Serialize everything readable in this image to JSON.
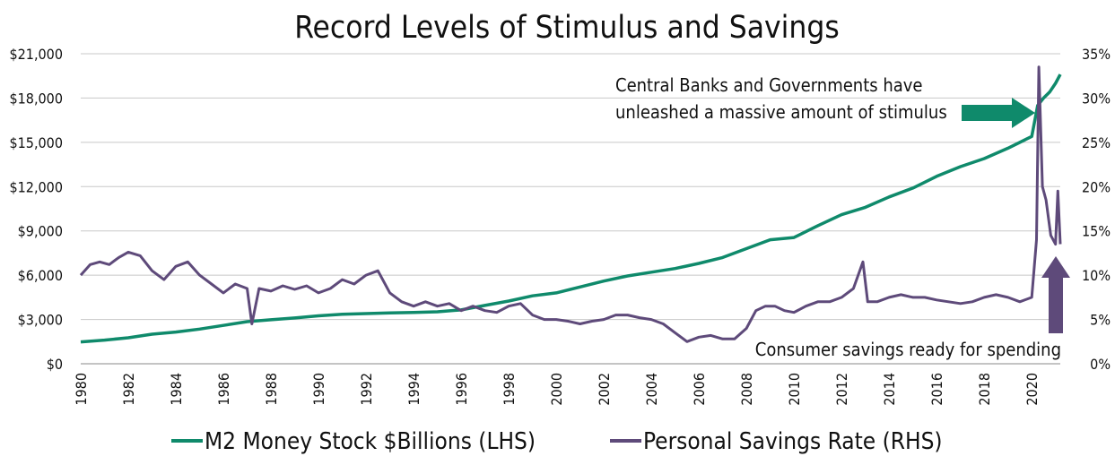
{
  "chart_data": {
    "type": "line",
    "title": "Record Levels of Stimulus and Savings",
    "x_tick_labels": [
      "1980",
      "1982",
      "1984",
      "1986",
      "1988",
      "1990",
      "1992",
      "1994",
      "1996",
      "1998",
      "2000",
      "2002",
      "2004",
      "2006",
      "2008",
      "2010",
      "2012",
      "2014",
      "2016",
      "2018",
      "2020"
    ],
    "xlim": [
      1980,
      2021.2
    ],
    "left_axis": {
      "ylim": [
        0,
        21000
      ],
      "tick_labels": [
        "$0",
        "$3,000",
        "$6,000",
        "$9,000",
        "$12,000",
        "$15,000",
        "$18,000",
        "$21,000"
      ]
    },
    "right_axis": {
      "ylim": [
        0,
        35
      ],
      "tick_labels": [
        "0%",
        "5%",
        "10%",
        "15%",
        "20%",
        "25%",
        "30%",
        "35%"
      ]
    },
    "grid": "horizontal",
    "series": [
      {
        "name": "M2 Money Stock $Billions (LHS)",
        "axis": "left",
        "color": "#0f8a6b",
        "x": [
          1980,
          1981,
          1982,
          1983,
          1984,
          1985,
          1986,
          1987,
          1988,
          1989,
          1990,
          1991,
          1992,
          1993,
          1994,
          1995,
          1996,
          1997,
          1998,
          1999,
          2000,
          2001,
          2002,
          2003,
          2004,
          2005,
          2006,
          2007,
          2008,
          2009,
          2010,
          2011,
          2012,
          2013,
          2014,
          2015,
          2016,
          2017,
          2018,
          2019,
          2020.0,
          2020.25,
          2020.5,
          2020.75,
          2021.0,
          2021.2
        ],
        "values": [
          1480,
          1600,
          1760,
          2000,
          2150,
          2350,
          2600,
          2850,
          2980,
          3100,
          3250,
          3350,
          3400,
          3450,
          3480,
          3520,
          3650,
          3950,
          4250,
          4600,
          4800,
          5200,
          5600,
          5950,
          6200,
          6450,
          6800,
          7200,
          7800,
          8400,
          8550,
          9350,
          10100,
          10600,
          11300,
          11900,
          12700,
          13350,
          13900,
          14600,
          15400,
          17500,
          18000,
          18400,
          19000,
          19600
        ]
      },
      {
        "name": "Personal Savings Rate (RHS)",
        "axis": "right",
        "color": "#5e4a7a",
        "x": [
          1980,
          1980.4,
          1980.8,
          1981.2,
          1981.6,
          1982.0,
          1982.5,
          1983.0,
          1983.5,
          1984.0,
          1984.5,
          1985.0,
          1985.5,
          1986.0,
          1986.5,
          1987.0,
          1987.2,
          1987.5,
          1988.0,
          1988.5,
          1989.0,
          1989.5,
          1990.0,
          1990.5,
          1991.0,
          1991.5,
          1992.0,
          1992.5,
          1993.0,
          1993.5,
          1994.0,
          1994.5,
          1995.0,
          1995.5,
          1996.0,
          1996.5,
          1997.0,
          1997.5,
          1998.0,
          1998.5,
          1999.0,
          1999.5,
          2000.0,
          2000.5,
          2001.0,
          2001.5,
          2002.0,
          2002.5,
          2003.0,
          2003.5,
          2004.0,
          2004.5,
          2005.0,
          2005.5,
          2006.0,
          2006.5,
          2007.0,
          2007.5,
          2008.0,
          2008.4,
          2008.8,
          2009.2,
          2009.6,
          2010.0,
          2010.5,
          2011.0,
          2011.5,
          2012.0,
          2012.5,
          2012.9,
          2013.1,
          2013.5,
          2014.0,
          2014.5,
          2015.0,
          2015.5,
          2016.0,
          2016.5,
          2017.0,
          2017.5,
          2018.0,
          2018.5,
          2019.0,
          2019.5,
          2020.0,
          2020.2,
          2020.3,
          2020.45,
          2020.6,
          2020.8,
          2021.0,
          2021.1,
          2021.2
        ],
        "values": [
          10.0,
          11.2,
          11.5,
          11.2,
          12.0,
          12.6,
          12.2,
          10.5,
          9.5,
          11.0,
          11.5,
          10.0,
          9.0,
          8.0,
          9.0,
          8.5,
          4.5,
          8.5,
          8.2,
          8.8,
          8.4,
          8.8,
          8.0,
          8.5,
          9.5,
          9.0,
          10.0,
          10.5,
          8.0,
          7.0,
          6.5,
          7.0,
          6.5,
          6.8,
          6.0,
          6.5,
          6.0,
          5.8,
          6.5,
          6.8,
          5.5,
          5.0,
          5.0,
          4.8,
          4.5,
          4.8,
          5.0,
          5.5,
          5.5,
          5.2,
          5.0,
          4.5,
          3.5,
          2.5,
          3.0,
          3.2,
          2.8,
          2.8,
          4.0,
          6.0,
          6.5,
          6.5,
          6.0,
          5.8,
          6.5,
          7.0,
          7.0,
          7.5,
          8.5,
          11.5,
          7.0,
          7.0,
          7.5,
          7.8,
          7.5,
          7.5,
          7.2,
          7.0,
          6.8,
          7.0,
          7.5,
          7.8,
          7.5,
          7.0,
          7.5,
          14.0,
          33.5,
          20.0,
          18.5,
          14.5,
          13.5,
          19.5,
          13.5
        ]
      }
    ],
    "annotations": [
      {
        "text": "Central Banks and Governments have"
      },
      {
        "text": "unleashed a massive amount of stimulus"
      },
      {
        "text": "Consumer savings ready for spending"
      }
    ]
  }
}
